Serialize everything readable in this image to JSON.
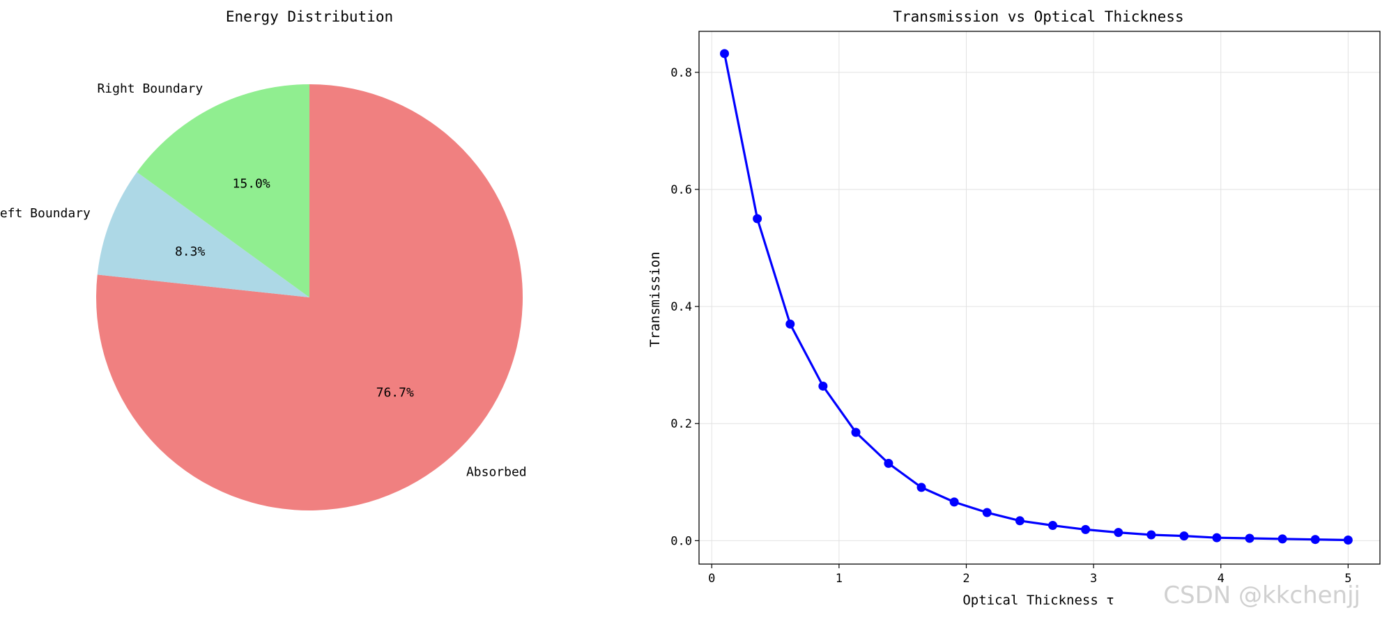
{
  "watermark": "CSDN @kkchenjj",
  "chart_data": [
    {
      "type": "pie",
      "title": "Energy Distribution",
      "slices": [
        {
          "label": "Absorbed",
          "value": 76.7,
          "pct_label": "76.7%",
          "color": "#f08080"
        },
        {
          "label": "Left Boundary",
          "value": 8.3,
          "pct_label": "8.3%",
          "color": "#add8e6"
        },
        {
          "label": "Right Boundary",
          "value": 15.0,
          "pct_label": "15.0%",
          "color": "#90ee90"
        }
      ],
      "start_angle_deg": 90,
      "direction": "clockwise"
    },
    {
      "type": "line",
      "title": "Transmission vs Optical Thickness",
      "xlabel": "Optical Thickness τ",
      "ylabel": "Transmission",
      "xlim": [
        -0.1,
        5.25
      ],
      "ylim": [
        -0.04,
        0.87
      ],
      "xticks": [
        0,
        1,
        2,
        3,
        4,
        5
      ],
      "xtick_labels": [
        "0",
        "1",
        "2",
        "3",
        "4",
        "5"
      ],
      "yticks": [
        0.0,
        0.2,
        0.4,
        0.6,
        0.8
      ],
      "ytick_labels": [
        "0.0",
        "0.2",
        "0.4",
        "0.6",
        "0.8"
      ],
      "grid": true,
      "color": "#0000ff",
      "series": [
        {
          "x": [
            0.1,
            0.358,
            0.616,
            0.874,
            1.132,
            1.389,
            1.647,
            1.905,
            2.163,
            2.421,
            2.679,
            2.937,
            3.195,
            3.453,
            3.711,
            3.968,
            4.226,
            4.484,
            4.742,
            5.0
          ],
          "values": [
            0.832,
            0.55,
            0.37,
            0.264,
            0.185,
            0.132,
            0.091,
            0.066,
            0.048,
            0.034,
            0.026,
            0.019,
            0.014,
            0.01,
            0.008,
            0.005,
            0.004,
            0.003,
            0.002,
            0.001
          ]
        }
      ]
    }
  ]
}
